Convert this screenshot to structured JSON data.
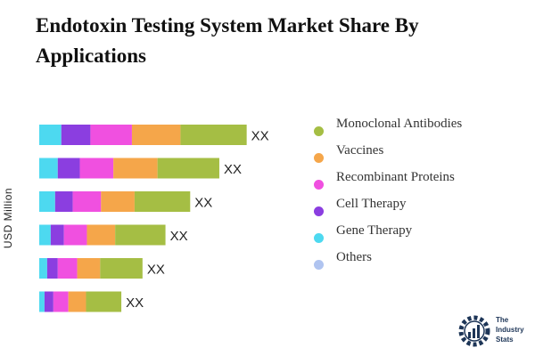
{
  "chart_data": {
    "type": "bar",
    "orientation": "horizontal",
    "stacked": true,
    "title": "Endotoxin Testing System Market Share By Applications",
    "ylabel": "USD Million",
    "categories": [
      "",
      "",
      "",
      "",
      "",
      ""
    ],
    "data_labels": [
      "XX",
      "XX",
      "XX",
      "XX",
      "XX",
      "XX"
    ],
    "grid": false,
    "legend_position": "right",
    "series": [
      {
        "name": "Gene Therapy",
        "color": "#4dd9f0",
        "values": [
          25,
          21,
          18,
          13,
          9,
          6
        ]
      },
      {
        "name": "Cell Therapy",
        "color": "#8b3ee0",
        "values": [
          33,
          25,
          20,
          15,
          12,
          10
        ]
      },
      {
        "name": "Recombinant Proteins",
        "color": "#f050e0",
        "values": [
          47,
          38,
          32,
          26,
          22,
          17
        ]
      },
      {
        "name": "Vaccines",
        "color": "#f5a64a",
        "values": [
          55,
          50,
          38,
          32,
          26,
          20
        ]
      },
      {
        "name": "Monoclonal Antibodies",
        "color": "#a5be44",
        "values": [
          75,
          70,
          63,
          57,
          48,
          40
        ]
      },
      {
        "name": "Others",
        "color": "#b0c4f0",
        "values": [
          0,
          0,
          0,
          0,
          0,
          0
        ]
      }
    ],
    "legend_order": [
      "Monoclonal Antibodies",
      "Vaccines",
      "Recombinant Proteins",
      "Cell Therapy",
      "Gene Therapy",
      "Others"
    ]
  },
  "logo": {
    "line1": "The",
    "line2": "Industry",
    "line3": "Stats"
  }
}
